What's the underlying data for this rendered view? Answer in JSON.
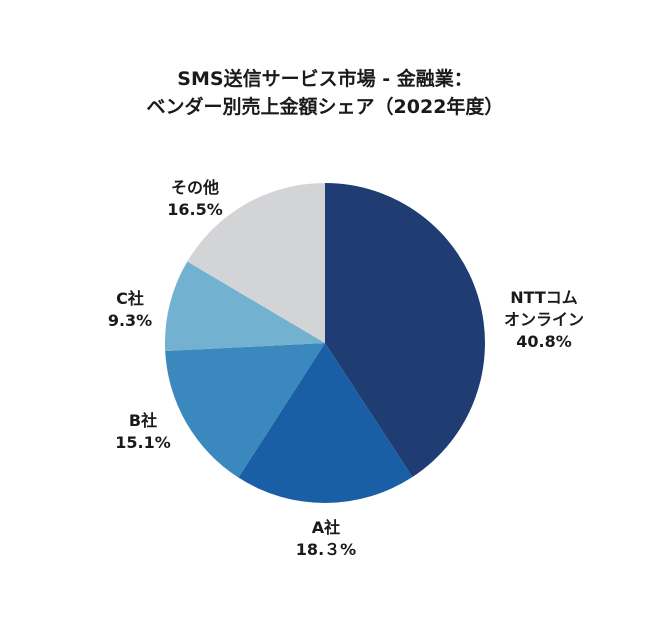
{
  "chart_data": {
    "type": "pie",
    "title": [
      "SMS送信サービス市場 - 金融業：",
      "ベンダー別売上金額シェア（2022年度）"
    ],
    "slices": [
      {
        "name": [
          "NTTコム",
          "オンライン"
        ],
        "value": 40.8,
        "value_label": "40.8%",
        "color": "#1f3d72"
      },
      {
        "name": [
          "A社"
        ],
        "value": 18.3,
        "value_label": "18.３%",
        "color": "#1a5fa6"
      },
      {
        "name": [
          "B社"
        ],
        "value": 15.1,
        "value_label": "15.1%",
        "color": "#3a88bd"
      },
      {
        "name": [
          "C社"
        ],
        "value": 9.3,
        "value_label": "9.3%",
        "color": "#72b1cf"
      },
      {
        "name": [
          "その他"
        ],
        "value": 16.5,
        "value_label": "16.5%",
        "color": "#d3d4d6"
      }
    ],
    "start_angle": "12 o'clock",
    "direction": "clockwise",
    "legend": "none"
  }
}
